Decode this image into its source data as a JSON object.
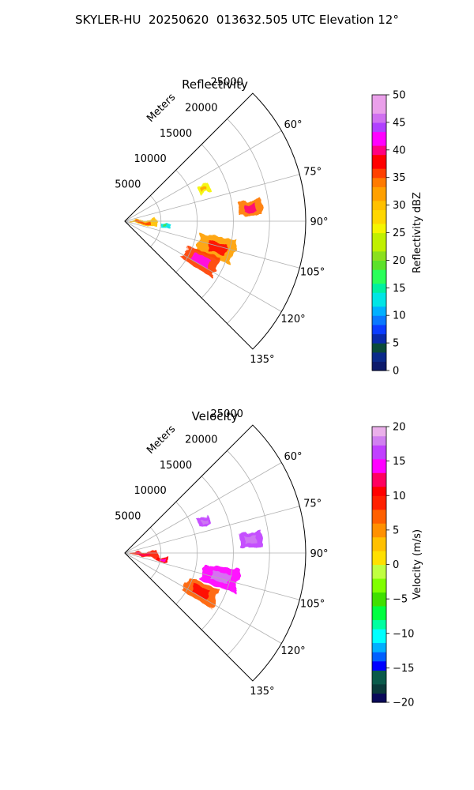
{
  "figure": {
    "title": "SKYLER-HU  20250620  013632.505 UTC Elevation 12°"
  },
  "chart_data": [
    {
      "type": "heatmap",
      "title": "Reflectivity",
      "radial_label": "Meters",
      "radial_ticks": [
        "5000",
        "10000",
        "15000",
        "20000",
        "25000"
      ],
      "radial_tick_values": [
        5000,
        10000,
        15000,
        20000,
        25000
      ],
      "angular_ticks": [
        "60°",
        "75°",
        "90°",
        "105°",
        "120°",
        "135°"
      ],
      "angular_tick_values": [
        60,
        75,
        90,
        105,
        120,
        135
      ],
      "theta_range_deg": [
        45,
        135
      ],
      "r_range_m": [
        0,
        25000
      ],
      "grid": true,
      "colorbar": {
        "label": "Reflectivity dBZ",
        "range": [
          0,
          50
        ],
        "ticks": [
          "0",
          "5",
          "10",
          "15",
          "20",
          "25",
          "30",
          "35",
          "40",
          "45",
          "50"
        ],
        "tick_values": [
          0,
          5,
          10,
          15,
          20,
          25,
          30,
          35,
          40,
          45,
          50
        ]
      },
      "echoes": [
        {
          "az_deg": 93,
          "range_m": 2500,
          "az_span_deg": 14,
          "range_span_m": 3800,
          "value": 30
        },
        {
          "az_deg": 96,
          "range_m": 5600,
          "az_span_deg": 6,
          "range_span_m": 1400,
          "value": 12
        },
        {
          "az_deg": 68,
          "range_m": 11800,
          "az_span_deg": 6,
          "range_span_m": 1600,
          "value": 25
        },
        {
          "az_deg": 84,
          "range_m": 17500,
          "az_span_deg": 7,
          "range_span_m": 3200,
          "value": 33
        },
        {
          "az_deg": 106,
          "range_m": 13200,
          "az_span_deg": 13,
          "range_span_m": 5200,
          "value": 32
        },
        {
          "az_deg": 117,
          "range_m": 11800,
          "az_span_deg": 12,
          "range_span_m": 4800,
          "value": 36
        }
      ]
    },
    {
      "type": "heatmap",
      "title": "Velocity",
      "radial_label": "Meters",
      "radial_ticks": [
        "5000",
        "10000",
        "15000",
        "20000",
        "25000"
      ],
      "radial_tick_values": [
        5000,
        10000,
        15000,
        20000,
        25000
      ],
      "angular_ticks": [
        "60°",
        "75°",
        "90°",
        "105°",
        "120°",
        "135°"
      ],
      "angular_tick_values": [
        60,
        75,
        90,
        105,
        120,
        135
      ],
      "theta_range_deg": [
        45,
        135
      ],
      "r_range_m": [
        0,
        25000
      ],
      "grid": true,
      "colorbar": {
        "label": "Velocity (m/s)",
        "range": [
          -20,
          20
        ],
        "ticks": [
          "−20",
          "−15",
          "−10",
          "−5",
          "0",
          "5",
          "10",
          "15",
          "20"
        ],
        "tick_values": [
          -20,
          -15,
          -10,
          -5,
          0,
          5,
          10,
          15,
          20
        ]
      },
      "echoes": [
        {
          "az_deg": 93,
          "range_m": 2600,
          "az_span_deg": 14,
          "range_span_m": 3800,
          "value": 9
        },
        {
          "az_deg": 99,
          "range_m": 5200,
          "az_span_deg": 8,
          "range_span_m": 1800,
          "value": 11
        },
        {
          "az_deg": 68,
          "range_m": 11800,
          "az_span_deg": 6,
          "range_span_m": 1600,
          "value": 15
        },
        {
          "az_deg": 84,
          "range_m": 17500,
          "az_span_deg": 7,
          "range_span_m": 3200,
          "value": 15
        },
        {
          "az_deg": 104,
          "range_m": 13600,
          "az_span_deg": 12,
          "range_span_m": 5000,
          "value": 14
        },
        {
          "az_deg": 117,
          "range_m": 11800,
          "az_span_deg": 12,
          "range_span_m": 4800,
          "value": 7
        }
      ]
    }
  ]
}
